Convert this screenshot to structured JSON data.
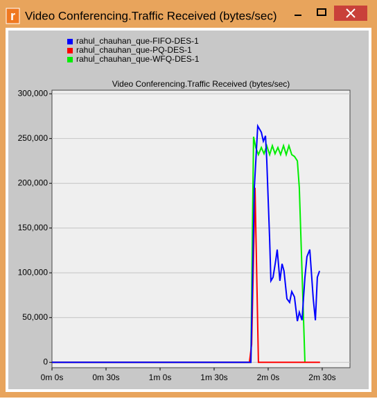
{
  "window": {
    "icon": "r",
    "title": "Video Conferencing.Traffic Received (bytes/sec)"
  },
  "chart_data": {
    "type": "line",
    "title": "Video Conferencing.Traffic Received (bytes/sec)",
    "xlim": [
      0,
      165.4
    ],
    "xticks": [
      {
        "value": 0,
        "label": "0m 0s"
      },
      {
        "value": 30,
        "label": "0m 30s"
      },
      {
        "value": 60,
        "label": "1m 0s"
      },
      {
        "value": 90,
        "label": "1m 30s"
      },
      {
        "value": 120,
        "label": "2m 0s"
      },
      {
        "value": 150,
        "label": "2m 30s"
      }
    ],
    "ylim": [
      -6000,
      304000
    ],
    "yticks": [
      0,
      {
        "value": 50000,
        "label": "50,000"
      },
      {
        "value": 100000,
        "label": "100,000"
      },
      {
        "value": 150000,
        "label": "150,000"
      },
      {
        "value": 200000,
        "label": "200,000"
      },
      {
        "value": 250000,
        "label": "250,000"
      },
      {
        "value": 300000,
        "label": "300,000"
      }
    ],
    "grid": true,
    "legend": "top-left",
    "series": [
      {
        "name": "rahul_chauhan_que-FIFO-DES-1",
        "color": "#0000ff",
        "x": [
          0,
          110.4,
          112.3,
          114.2,
          116.2,
          117.3,
          118.5,
          119.2,
          120.8,
          121.5,
          122.7,
          124.2,
          125,
          126.5,
          127.7,
          128.8,
          130.4,
          131.9,
          133.1,
          134.6,
          136.2,
          137.3,
          138.8,
          140.4,
          141.5,
          143.1,
          145,
          146.2,
          147.3,
          148.5
        ],
        "values": [
          0,
          0,
          195000,
          264000,
          257000,
          247000,
          253000,
          226000,
          137000,
          91000,
          95000,
          114000,
          126000,
          91000,
          110000,
          102000,
          71000,
          67000,
          79000,
          73000,
          46000,
          56000,
          47000,
          95000,
          118000,
          126000,
          71000,
          47000,
          95000,
          102000
        ]
      },
      {
        "name": "rahul_chauhan_que-PQ-DES-1",
        "color": "#ff0000",
        "x": [
          0,
          109.6,
          110.8,
          112.7,
          114.6,
          148.8
        ],
        "values": [
          0,
          0,
          20000,
          195000,
          0,
          0
        ]
      },
      {
        "name": "rahul_chauhan_que-WFQ-DES-1",
        "color": "#00ee00",
        "x": [
          0,
          110.4,
          111.9,
          113.1,
          114.6,
          116.2,
          117.7,
          119.2,
          120.8,
          122.3,
          123.8,
          125.4,
          126.9,
          128.5,
          130,
          131.5,
          133.1,
          134.6,
          136.2,
          137.3,
          140.4
        ],
        "values": [
          0,
          0,
          252000,
          240000,
          232000,
          240000,
          233000,
          242000,
          232000,
          242000,
          233000,
          240000,
          232000,
          242000,
          232000,
          242000,
          232000,
          230000,
          225000,
          195000,
          0
        ]
      }
    ]
  }
}
